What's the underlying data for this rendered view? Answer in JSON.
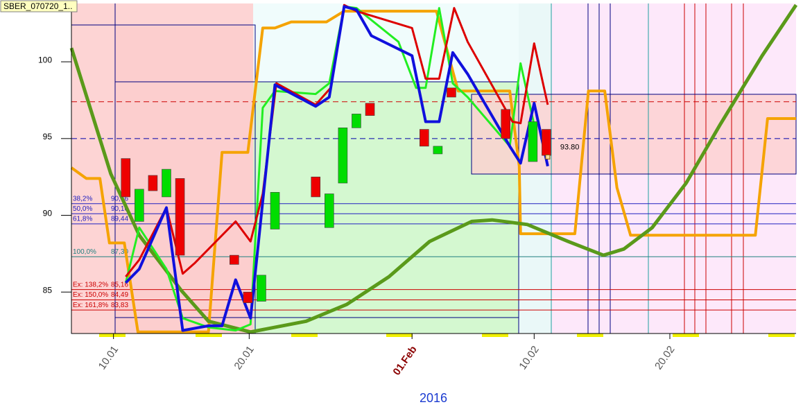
{
  "chart_data": {
    "type": "candlestick",
    "title": "SBER_070720_1..",
    "xlabel": "2016",
    "xlim": [
      6.9,
      60.3
    ],
    "xticks": [
      {
        "value": 10,
        "label": "10.01"
      },
      {
        "value": 20,
        "label": "20.01"
      },
      {
        "value": 32,
        "label": "01.Feb"
      },
      {
        "value": 41,
        "label": "10.02"
      },
      {
        "value": 51,
        "label": "20.02"
      }
    ],
    "ylim": [
      82.3,
      103.8
    ],
    "yticks": [
      85,
      90,
      95,
      100
    ],
    "up_color": "#00dd00",
    "down_color": "#ee0000",
    "candles": {
      "x": [
        10.9,
        11.9,
        12.9,
        13.9,
        14.9,
        18.9,
        19.9,
        20.9,
        21.9,
        24.9,
        25.9,
        26.9,
        27.9,
        28.9,
        32.9,
        33.9,
        34.9,
        38.9,
        40.9,
        41.9
      ],
      "open": [
        93.7,
        89.6,
        92.6,
        91.2,
        92.4,
        87.4,
        85.0,
        84.4,
        89.1,
        92.5,
        89.2,
        92.1,
        95.7,
        97.3,
        95.6,
        94.0,
        98.3,
        96.9,
        93.5,
        95.6
      ],
      "close": [
        91.2,
        91.7,
        91.6,
        93.0,
        87.4,
        86.8,
        84.3,
        86.1,
        91.5,
        91.2,
        91.4,
        95.7,
        96.6,
        96.5,
        94.5,
        94.5,
        97.7,
        95.0,
        96.1,
        93.9
      ]
    },
    "series": [
      {
        "color": "#f5a300",
        "width": 4,
        "x": [
          6.9,
          8.0,
          9.0,
          9.7,
          10.8,
          11.8,
          17.0,
          18.0,
          19.9,
          21.0,
          21.9,
          23.1,
          25.7,
          27.0,
          33.8,
          35.4,
          39.2,
          39.9,
          40.0,
          44.0,
          45.0,
          46.2,
          47.1,
          48.1,
          57.3,
          58.2,
          60.3
        ],
        "values": [
          93.1,
          92.4,
          92.4,
          88.2,
          88.2,
          82.4,
          82.4,
          94.1,
          94.1,
          102.2,
          102.2,
          102.6,
          102.6,
          103.3,
          103.3,
          98.1,
          98.1,
          93.2,
          88.8,
          88.8,
          98.1,
          98.1,
          91.8,
          88.7,
          88.7,
          96.3,
          96.3
        ]
      },
      {
        "color": "#5a9a1a",
        "width": 5,
        "x": [
          6.9,
          9.8,
          11.9,
          15.0,
          17.0,
          20.1,
          24.2,
          27.2,
          30.3,
          33.3,
          36.4,
          37.9,
          40.5,
          43.5,
          46.1,
          47.6,
          49.7,
          52.2,
          54.7,
          57.8,
          60.3
        ],
        "values": [
          100.9,
          92.7,
          88.7,
          85.1,
          83.1,
          82.4,
          83.1,
          84.2,
          86.0,
          88.3,
          89.6,
          89.7,
          89.4,
          88.3,
          87.4,
          87.8,
          89.2,
          92.1,
          95.9,
          100.4,
          103.7
        ]
      },
      {
        "color": "#22ee22",
        "width": 3,
        "x": [
          10.9,
          11.9,
          13.9,
          15.1,
          17.0,
          19.0,
          20.1,
          21.0,
          21.9,
          24.9,
          25.9,
          27.0,
          27.9,
          31.0,
          32.3,
          33.0,
          34.0,
          35.0,
          36.1,
          39.2,
          40.0,
          41.0
        ],
        "values": [
          85.6,
          89.2,
          86.5,
          83.3,
          82.7,
          82.5,
          82.9,
          97.0,
          98.1,
          97.9,
          98.6,
          103.6,
          103.5,
          101.3,
          98.3,
          98.3,
          103.5,
          98.6,
          97.7,
          94.5,
          99.9,
          95.9
        ]
      },
      {
        "color": "#dd0000",
        "width": 3,
        "x": [
          10.9,
          11.9,
          13.9,
          15.1,
          16.0,
          19.0,
          20.1,
          21.0,
          22.0,
          24.9,
          26.0,
          27.0,
          27.9,
          32.0,
          33.0,
          34.0,
          35.1,
          36.1,
          39.4,
          40.0,
          41.0,
          42.0
        ],
        "values": [
          86.0,
          87.1,
          90.5,
          86.2,
          86.9,
          89.6,
          88.3,
          91.4,
          98.6,
          97.2,
          98.3,
          103.7,
          103.3,
          102.2,
          98.9,
          98.9,
          103.5,
          101.3,
          96.1,
          96.0,
          101.2,
          97.2
        ]
      },
      {
        "color": "#1010dd",
        "width": 4,
        "x": [
          10.9,
          11.9,
          13.9,
          15.1,
          17.0,
          18.0,
          19.0,
          20.1,
          21.9,
          24.9,
          25.9,
          27.0,
          27.9,
          29.0,
          32.0,
          33.0,
          34.0,
          35.0,
          36.1,
          39.2,
          40.0,
          41.0,
          42.0
        ],
        "values": [
          85.6,
          86.5,
          90.5,
          82.5,
          82.8,
          82.8,
          85.8,
          83.3,
          98.5,
          97.1,
          97.7,
          103.6,
          103.4,
          101.7,
          100.4,
          96.1,
          96.1,
          100.6,
          99.2,
          94.5,
          93.4,
          97.3,
          93.2
        ]
      }
    ],
    "levels": [
      {
        "value": 97.4,
        "color": "#cc0000"
      },
      {
        "value": 95.0,
        "color": "#0000aa"
      }
    ],
    "fib": [
      {
        "label": "38,2%",
        "price": {
          "value": 90.76,
          "label": "90,76"
        },
        "color": "#2020c0"
      },
      {
        "label": "50,0%",
        "price": {
          "value": 90.1,
          "label": "90,10"
        },
        "color": "#2020c0"
      },
      {
        "label": "61,8%",
        "price": {
          "value": 89.44,
          "label": "89,44"
        },
        "color": "#2020c0"
      },
      {
        "label": "100,0%",
        "price": {
          "value": 87.3,
          "label": "87,30"
        },
        "color": "#208080"
      },
      {
        "label": "Ex:  138,2%",
        "price": {
          "value": 85.16,
          "label": "85,16"
        },
        "color": "#cc0000"
      },
      {
        "label": "Ex:  150,0%",
        "price": {
          "value": 84.49,
          "label": "84,49"
        },
        "color": "#cc0000"
      },
      {
        "label": "Ex:  161,8%",
        "price": {
          "value": 83.83,
          "label": "83,83"
        },
        "color": "#cc0000"
      }
    ],
    "price_label": {
      "x": 42,
      "value": 93.8,
      "label": "93.80"
    }
  }
}
